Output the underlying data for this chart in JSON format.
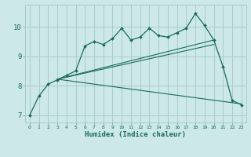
{
  "xlabel": "Humidex (Indice chaleur)",
  "bg_color": "#cce8e8",
  "grid_color": "#aacccc",
  "line_color": "#1a6b5a",
  "x_ticks": [
    0,
    1,
    2,
    3,
    4,
    5,
    6,
    7,
    8,
    9,
    10,
    11,
    12,
    13,
    14,
    15,
    16,
    17,
    18,
    19,
    20,
    21,
    22,
    23
  ],
  "y_ticks": [
    7,
    8,
    9,
    10
  ],
  "xlim": [
    -0.5,
    23.5
  ],
  "ylim": [
    6.75,
    10.75
  ],
  "main_line_x": [
    0,
    1,
    2,
    3,
    4,
    5,
    6,
    7,
    8,
    9,
    10,
    11,
    12,
    13,
    14,
    15,
    16,
    17,
    18,
    19,
    20,
    21,
    22,
    23
  ],
  "main_line_y": [
    7.0,
    7.65,
    8.05,
    8.2,
    8.35,
    8.5,
    9.35,
    9.5,
    9.4,
    9.6,
    9.95,
    9.55,
    9.65,
    9.95,
    9.7,
    9.65,
    9.8,
    9.95,
    10.45,
    10.05,
    9.55,
    8.65,
    7.5,
    7.35
  ],
  "line2_x": [
    3,
    20
  ],
  "line2_y": [
    8.22,
    9.55
  ],
  "line3_x": [
    3,
    20
  ],
  "line3_y": [
    8.22,
    9.4
  ],
  "line4_x": [
    3,
    23
  ],
  "line4_y": [
    8.22,
    7.38
  ]
}
